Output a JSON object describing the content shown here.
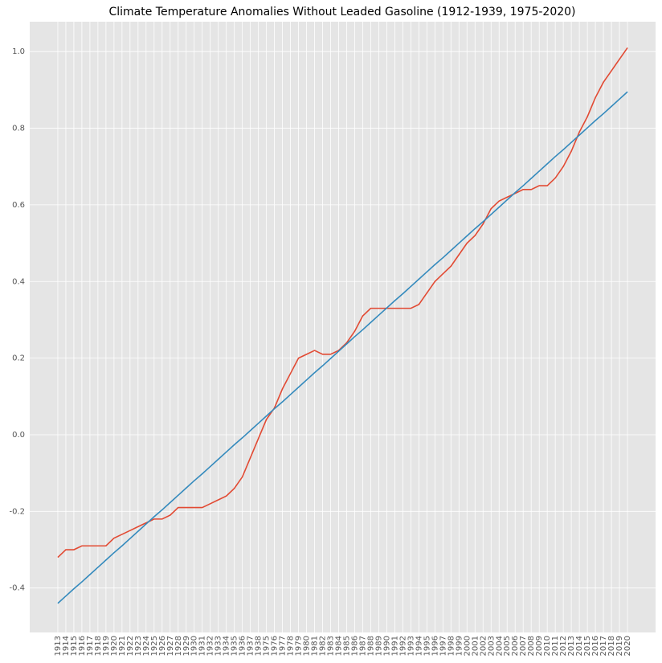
{
  "chart_data": {
    "type": "line",
    "title": "Climate Temperature Anomalies Without Leaded Gasoline (1912-1939, 1975-2020)",
    "categories": [
      "1913",
      "1914",
      "1915",
      "1916",
      "1917",
      "1918",
      "1919",
      "1920",
      "1921",
      "1922",
      "1923",
      "1924",
      "1925",
      "1926",
      "1927",
      "1928",
      "1929",
      "1930",
      "1931",
      "1932",
      "1933",
      "1934",
      "1935",
      "1936",
      "1937",
      "1938",
      "1975",
      "1976",
      "1977",
      "1978",
      "1979",
      "1980",
      "1981",
      "1982",
      "1983",
      "1984",
      "1985",
      "1986",
      "1987",
      "1988",
      "1989",
      "1990",
      "1991",
      "1992",
      "1993",
      "1994",
      "1995",
      "1996",
      "1997",
      "1998",
      "1999",
      "2000",
      "2001",
      "2002",
      "2003",
      "2004",
      "2005",
      "2006",
      "2007",
      "2008",
      "2009",
      "2010",
      "2011",
      "2012",
      "2013",
      "2014",
      "2015",
      "2016",
      "2017",
      "2018",
      "2019",
      "2020"
    ],
    "series": [
      {
        "color": "#E24A33",
        "values": [
          -0.32,
          -0.3,
          -0.3,
          -0.29,
          -0.29,
          -0.29,
          -0.29,
          -0.27,
          -0.26,
          -0.25,
          -0.24,
          -0.23,
          -0.22,
          -0.22,
          -0.21,
          -0.19,
          -0.19,
          -0.19,
          -0.19,
          -0.18,
          -0.17,
          -0.16,
          -0.14,
          -0.11,
          -0.06,
          -0.01,
          0.04,
          0.07,
          0.12,
          0.16,
          0.2,
          0.21,
          0.22,
          0.21,
          0.21,
          0.22,
          0.24,
          0.27,
          0.31,
          0.33,
          0.33,
          0.33,
          0.33,
          0.33,
          0.33,
          0.34,
          0.37,
          0.4,
          0.42,
          0.44,
          0.47,
          0.5,
          0.52,
          0.55,
          0.59,
          0.61,
          0.62,
          0.63,
          0.64,
          0.64,
          0.65,
          0.65,
          0.67,
          0.7,
          0.74,
          0.79,
          0.83,
          0.88,
          0.92,
          0.95,
          0.98,
          1.01
        ]
      },
      {
        "color": "#348ABD",
        "values": [
          -0.44,
          -0.421,
          -0.402,
          -0.384,
          -0.365,
          -0.346,
          -0.327,
          -0.308,
          -0.29,
          -0.271,
          -0.252,
          -0.233,
          -0.214,
          -0.196,
          -0.177,
          -0.158,
          -0.139,
          -0.12,
          -0.102,
          -0.083,
          -0.064,
          -0.045,
          -0.026,
          -0.008,
          0.011,
          0.03,
          0.049,
          0.068,
          0.086,
          0.105,
          0.124,
          0.143,
          0.162,
          0.18,
          0.199,
          0.218,
          0.237,
          0.256,
          0.274,
          0.293,
          0.312,
          0.331,
          0.35,
          0.368,
          0.387,
          0.406,
          0.425,
          0.444,
          0.462,
          0.481,
          0.5,
          0.519,
          0.538,
          0.556,
          0.575,
          0.594,
          0.613,
          0.632,
          0.65,
          0.669,
          0.688,
          0.707,
          0.726,
          0.744,
          0.763,
          0.782,
          0.801,
          0.82,
          0.838,
          0.857,
          0.876,
          0.895
        ]
      }
    ],
    "ylim": [
      -0.516,
      1.078
    ],
    "yticks": [
      -0.4,
      -0.2,
      {
        "value": 0,
        "label": "0.0"
      },
      0.2,
      0.4,
      0.6,
      0.8,
      {
        "value": 1,
        "label": "1.0"
      }
    ],
    "grid": true,
    "background": "#E5E5E5"
  }
}
